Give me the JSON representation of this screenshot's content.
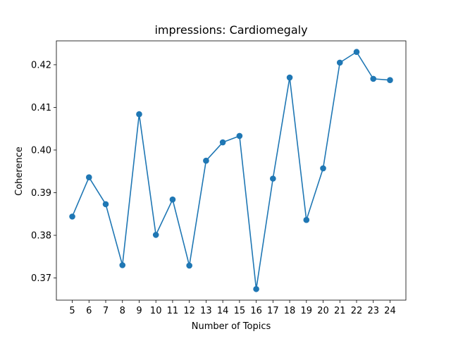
{
  "chart_data": {
    "type": "line",
    "title": "impressions: Cardiomegaly",
    "xlabel": "Number of Topics",
    "ylabel": "Coherence",
    "xlim": [
      4.05,
      24.95
    ],
    "ylim": [
      0.3648,
      0.4256
    ],
    "xticks": [
      5,
      6,
      7,
      8,
      9,
      10,
      11,
      12,
      13,
      14,
      15,
      16,
      17,
      18,
      19,
      20,
      21,
      22,
      23,
      24
    ],
    "xtick_labels": [
      "5",
      "6",
      "7",
      "8",
      "9",
      "10",
      "11",
      "12",
      "13",
      "14",
      "15",
      "16",
      "17",
      "18",
      "19",
      "20",
      "21",
      "22",
      "23",
      "24"
    ],
    "yticks": [
      0.37,
      0.38,
      0.39,
      0.4,
      0.41,
      0.42
    ],
    "ytick_labels": [
      "0.37",
      "0.38",
      "0.39",
      "0.40",
      "0.41",
      "0.42"
    ],
    "grid": false,
    "series": [
      {
        "name": "coherence",
        "color": "#1f77b4",
        "marker": "circle",
        "x": [
          5,
          6,
          7,
          8,
          9,
          10,
          11,
          12,
          13,
          14,
          15,
          16,
          17,
          18,
          19,
          20,
          21,
          22,
          23,
          24
        ],
        "values": [
          0.3844,
          0.3936,
          0.3873,
          0.373,
          0.4084,
          0.3801,
          0.3884,
          0.3729,
          0.3975,
          0.4018,
          0.4033,
          0.3674,
          0.3933,
          0.417,
          0.3836,
          0.3957,
          0.4205,
          0.423,
          0.4167,
          0.4164
        ]
      }
    ]
  }
}
